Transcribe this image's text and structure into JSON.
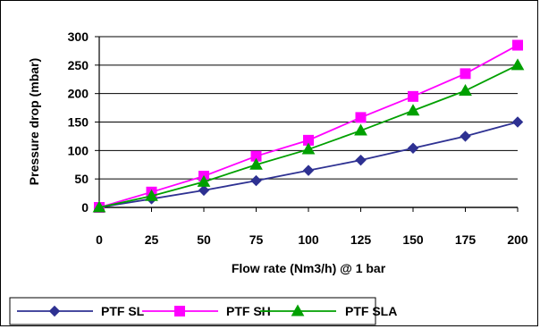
{
  "chart_data": {
    "type": "line",
    "title": "",
    "xlabel": "Flow rate (Nm3/h) @ 1 bar",
    "ylabel": "Pressure drop (mbar)",
    "x": [
      0,
      25,
      50,
      75,
      100,
      125,
      150,
      175,
      200
    ],
    "xlim": [
      0,
      200
    ],
    "ylim": [
      0,
      300
    ],
    "x_ticks": [
      0,
      25,
      50,
      75,
      100,
      125,
      150,
      175,
      200
    ],
    "y_ticks": [
      0,
      50,
      100,
      150,
      200,
      250,
      300
    ],
    "grid": "horizontal",
    "legend_position": "bottom",
    "series": [
      {
        "name": "PTF SL",
        "color": "#2e3192",
        "marker": "diamond",
        "values": [
          0,
          15,
          30,
          47,
          65,
          83,
          104,
          125,
          150
        ]
      },
      {
        "name": "PTF SH",
        "color": "#ff00ff",
        "marker": "square",
        "values": [
          0,
          27,
          55,
          90,
          118,
          158,
          195,
          235,
          285
        ]
      },
      {
        "name": "PTF SLA",
        "color": "#00a000",
        "marker": "triangle",
        "values": [
          0,
          20,
          45,
          75,
          102,
          135,
          170,
          205,
          250
        ]
      }
    ]
  }
}
